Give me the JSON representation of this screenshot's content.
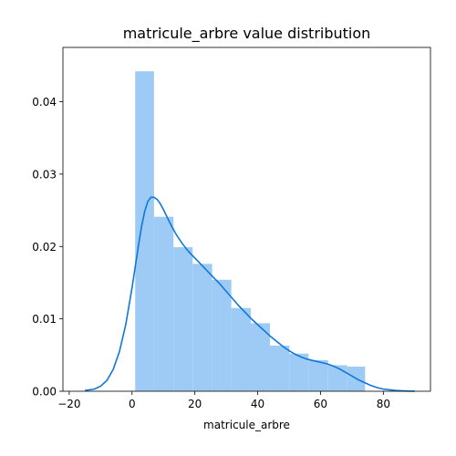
{
  "chart_data": {
    "type": "histogram",
    "title": "matricule_arbre value distribution",
    "xlabel": "matricule_arbre",
    "ylabel": "",
    "xlim": [
      -22,
      95
    ],
    "ylim": [
      0,
      0.0475
    ],
    "xticks": [
      -20,
      0,
      20,
      40,
      60,
      80
    ],
    "xtick_labels": [
      "−20",
      "0",
      "20",
      "40",
      "60",
      "80"
    ],
    "yticks": [
      0,
      0.01,
      0.02,
      0.03,
      0.04
    ],
    "ytick_labels": [
      "0.00",
      "0.01",
      "0.02",
      "0.03",
      "0.04"
    ],
    "grid": false,
    "bar_color": "#9ecbf5",
    "line_color": "#0f77d9",
    "bins": [
      {
        "x0": 1,
        "x1": 7,
        "density": 0.0442
      },
      {
        "x0": 7,
        "x1": 13.2,
        "density": 0.0241
      },
      {
        "x0": 13.2,
        "x1": 19.3,
        "density": 0.0199
      },
      {
        "x0": 19.3,
        "x1": 25.5,
        "density": 0.0176
      },
      {
        "x0": 25.5,
        "x1": 31.6,
        "density": 0.0154
      },
      {
        "x0": 31.6,
        "x1": 37.8,
        "density": 0.0115
      },
      {
        "x0": 37.8,
        "x1": 43.9,
        "density": 0.0094
      },
      {
        "x0": 43.9,
        "x1": 50.1,
        "density": 0.0063
      },
      {
        "x0": 50.1,
        "x1": 56.2,
        "density": 0.0052
      },
      {
        "x0": 56.2,
        "x1": 62.4,
        "density": 0.0043
      },
      {
        "x0": 62.4,
        "x1": 68.5,
        "density": 0.0036
      },
      {
        "x0": 68.5,
        "x1": 74.2,
        "density": 0.0034
      }
    ],
    "kde": {
      "x": [
        -15,
        -12,
        -10,
        -8,
        -6,
        -4,
        -2,
        0,
        2,
        3,
        4,
        5,
        6,
        7,
        8,
        9,
        10,
        12,
        14,
        16,
        18,
        20,
        22,
        24,
        26,
        28,
        30,
        32,
        34,
        36,
        38,
        40,
        42,
        44,
        46,
        48,
        50,
        52,
        54,
        56,
        58,
        60,
        62,
        64,
        66,
        68,
        70,
        72,
        74,
        76,
        78,
        80,
        82,
        84,
        86,
        88,
        90
      ],
      "y": [
        0.0001,
        0.0003,
        0.0007,
        0.0015,
        0.003,
        0.0055,
        0.0092,
        0.0143,
        0.02,
        0.0227,
        0.0248,
        0.0262,
        0.0268,
        0.0268,
        0.0265,
        0.0259,
        0.0251,
        0.0233,
        0.0217,
        0.0204,
        0.0193,
        0.0184,
        0.0175,
        0.0166,
        0.0157,
        0.0148,
        0.0138,
        0.0128,
        0.0118,
        0.0109,
        0.01,
        0.0092,
        0.0084,
        0.0076,
        0.0069,
        0.0062,
        0.0056,
        0.0051,
        0.0047,
        0.0044,
        0.0042,
        0.004,
        0.0038,
        0.0035,
        0.0031,
        0.0026,
        0.0021,
        0.0016,
        0.0012,
        0.0008,
        0.0005,
        0.0003,
        0.0002,
        0.0001,
        5e-05,
        2e-05,
        1e-05
      ]
    }
  }
}
